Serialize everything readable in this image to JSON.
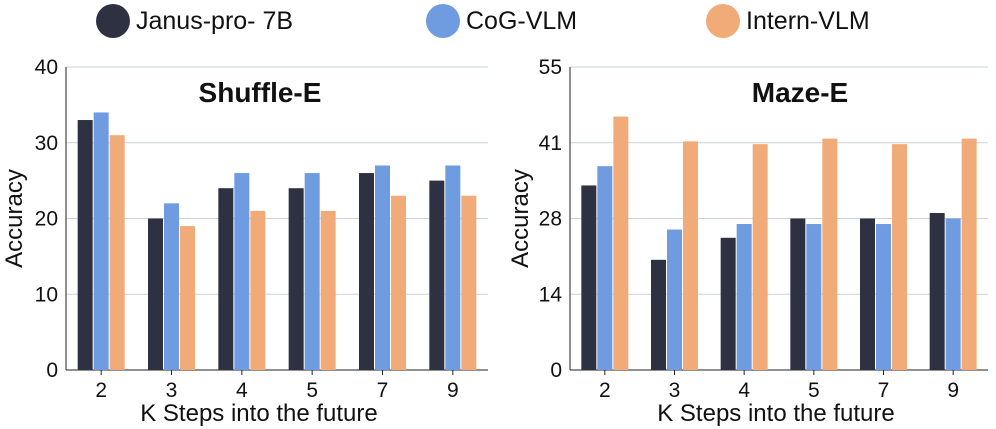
{
  "legend": [
    {
      "label": "Janus-pro- 7B",
      "color": "#2d3142"
    },
    {
      "label": "CoG-VLM",
      "color": "#6f9be0"
    },
    {
      "label": "Intern-VLM",
      "color": "#f0ab78"
    }
  ],
  "chart_data": [
    {
      "type": "bar",
      "title": "Shuffle-E",
      "xlabel": "K Steps into the future",
      "ylabel": "Accuracy",
      "categories": [
        "2",
        "3",
        "4",
        "5",
        "7",
        "9"
      ],
      "ylim": [
        0,
        40
      ],
      "yticks": [
        "0",
        "10",
        "20",
        "30",
        "40"
      ],
      "ytick_values": [
        0,
        10,
        20,
        30,
        40
      ],
      "grid": true,
      "series": [
        {
          "name": "Janus-pro- 7B",
          "values": [
            33,
            20,
            24,
            24,
            26,
            25
          ]
        },
        {
          "name": "CoG-VLM",
          "values": [
            34,
            22,
            26,
            26,
            27,
            27
          ]
        },
        {
          "name": "Intern-VLM",
          "values": [
            31,
            19,
            21,
            21,
            23,
            23
          ]
        }
      ]
    },
    {
      "type": "bar",
      "title": "Maze-E",
      "xlabel": "K Steps into the future",
      "ylabel": "Accuracy",
      "categories": [
        "2",
        "3",
        "4",
        "5",
        "7",
        "9"
      ],
      "ylim": [
        0,
        55
      ],
      "yticks": [
        "0",
        "14",
        "28",
        "41",
        "55"
      ],
      "ytick_values": [
        0,
        13.75,
        27.5,
        41.25,
        55
      ],
      "grid": true,
      "series": [
        {
          "name": "Janus-pro- 7B",
          "values": [
            33.5,
            20,
            24,
            27.5,
            27.5,
            28.5
          ]
        },
        {
          "name": "CoG-VLM",
          "values": [
            37,
            25.5,
            26.5,
            26.5,
            26.5,
            27.5
          ]
        },
        {
          "name": "Intern-VLM",
          "values": [
            46,
            41.5,
            41,
            42,
            41,
            42
          ]
        }
      ]
    }
  ]
}
